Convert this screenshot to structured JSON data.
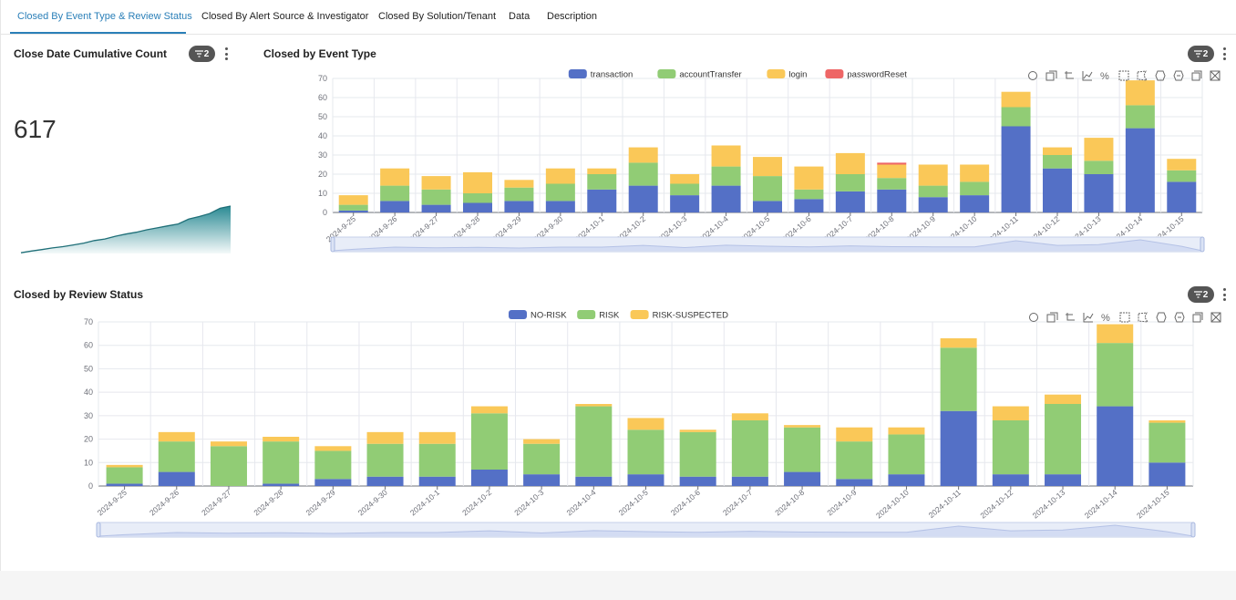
{
  "tabs": [
    {
      "label": "Closed By Event Type & Review Status",
      "active": true
    },
    {
      "label": "Closed By Alert Source & Investigator",
      "active": false
    },
    {
      "label": "Closed By Solution/Tenant",
      "active": false
    },
    {
      "label": "Data",
      "active": false
    },
    {
      "label": "Description",
      "active": false
    }
  ],
  "cumulative_panel": {
    "title": "Close Date Cumulative Count",
    "filter_count": "2",
    "value": "617",
    "sparkline_color": "#2a8a93"
  },
  "event_type_panel": {
    "title": "Closed by Event Type",
    "filter_count": "2",
    "toolbox_icons": [
      "restore-icon",
      "zoom-in-icon",
      "zoom-reset-icon",
      "line-chart-icon",
      "percent-icon",
      "select-rect-icon",
      "select-polygon-icon",
      "keep-select-icon",
      "clear-select-icon",
      "data-view-icon",
      "save-image-icon"
    ]
  },
  "review_status_panel": {
    "title": "Closed by Review Status",
    "filter_count": "2"
  },
  "chart_data": [
    {
      "type": "bar",
      "stacked": true,
      "categories": [
        "2024-9-25",
        "2024-9-26",
        "2024-9-27",
        "2024-9-28",
        "2024-9-29",
        "2024-9-30",
        "2024-10-1",
        "2024-10-2",
        "2024-10-3",
        "2024-10-4",
        "2024-10-5",
        "2024-10-6",
        "2024-10-7",
        "2024-10-8",
        "2024-10-9",
        "2024-10-10",
        "2024-10-11",
        "2024-10-12",
        "2024-10-13",
        "2024-10-14",
        "2024-10-15"
      ],
      "ylim": [
        0,
        70
      ],
      "yticks": [
        0,
        10,
        20,
        30,
        40,
        50,
        60,
        70
      ],
      "legend_position": "top-center",
      "grid": true,
      "series": [
        {
          "name": "transaction",
          "color": "#5470c6",
          "values": [
            1,
            6,
            4,
            5,
            6,
            6,
            12,
            14,
            9,
            14,
            6,
            7,
            11,
            12,
            8,
            9,
            45,
            23,
            20,
            44,
            16
          ]
        },
        {
          "name": "accountTransfer",
          "color": "#91cc75",
          "values": [
            3,
            8,
            8,
            5,
            7,
            9,
            8,
            12,
            6,
            10,
            13,
            5,
            9,
            6,
            6,
            7,
            10,
            7,
            7,
            12,
            6
          ]
        },
        {
          "name": "login",
          "color": "#fac858",
          "values": [
            5,
            9,
            7,
            11,
            4,
            8,
            3,
            8,
            5,
            11,
            10,
            12,
            11,
            7,
            11,
            9,
            8,
            4,
            12,
            13,
            6
          ]
        },
        {
          "name": "passwordReset",
          "color": "#ee6666",
          "values": [
            0,
            0,
            0,
            0,
            0,
            0,
            0,
            0,
            0,
            0,
            0,
            0,
            0,
            1,
            0,
            0,
            0,
            0,
            0,
            0,
            0
          ]
        }
      ]
    },
    {
      "type": "bar",
      "stacked": true,
      "categories": [
        "2024-9-25",
        "2024-9-26",
        "2024-9-27",
        "2024-9-28",
        "2024-9-29",
        "2024-9-30",
        "2024-10-1",
        "2024-10-2",
        "2024-10-3",
        "2024-10-4",
        "2024-10-5",
        "2024-10-6",
        "2024-10-7",
        "2024-10-8",
        "2024-10-9",
        "2024-10-10",
        "2024-10-11",
        "2024-10-12",
        "2024-10-13",
        "2024-10-14",
        "2024-10-15"
      ],
      "ylim": [
        0,
        70
      ],
      "yticks": [
        0,
        10,
        20,
        30,
        40,
        50,
        60,
        70
      ],
      "legend_position": "top-center",
      "grid": true,
      "series": [
        {
          "name": "NO-RISK",
          "color": "#5470c6",
          "values": [
            1,
            6,
            0,
            1,
            3,
            4,
            4,
            7,
            5,
            4,
            5,
            4,
            4,
            6,
            3,
            5,
            32,
            5,
            5,
            34,
            10
          ]
        },
        {
          "name": "RISK",
          "color": "#91cc75",
          "values": [
            7,
            13,
            17,
            18,
            12,
            14,
            14,
            24,
            13,
            30,
            19,
            19,
            24,
            19,
            16,
            17,
            27,
            23,
            30,
            27,
            17
          ]
        },
        {
          "name": "RISK-SUSPECTED",
          "color": "#fac858",
          "values": [
            1,
            4,
            2,
            2,
            2,
            5,
            5,
            3,
            2,
            1,
            5,
            1,
            3,
            1,
            6,
            3,
            4,
            6,
            4,
            8,
            1
          ]
        }
      ]
    }
  ]
}
